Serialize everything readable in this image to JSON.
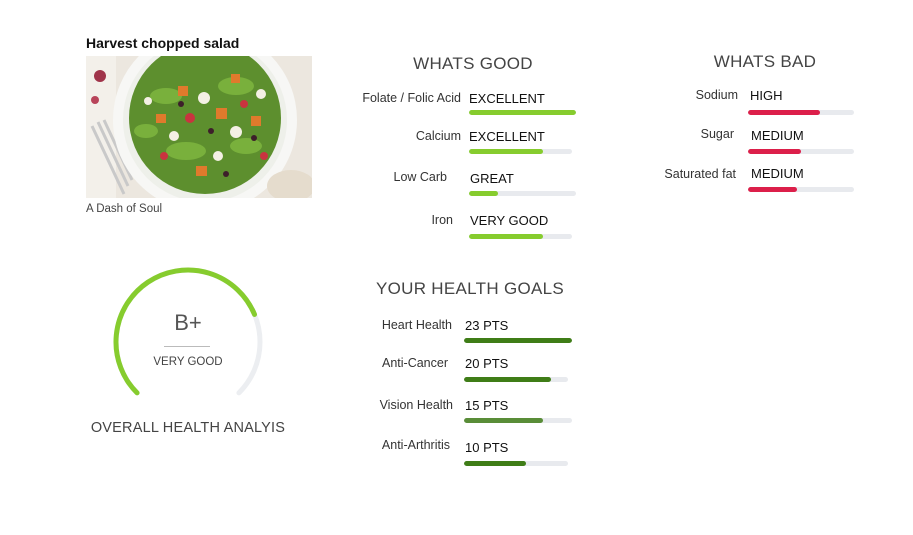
{
  "recipe": {
    "title": "Harvest chopped salad",
    "source": "A Dash of Soul"
  },
  "overall": {
    "grade": "B+",
    "rating": "VERY GOOD",
    "caption": "OVERALL HEALTH ANALYIS",
    "score_fraction": 0.75
  },
  "good": {
    "title": "WHATS GOOD",
    "items": [
      {
        "label": "Folate / Folic Acid",
        "value": "EXCELLENT",
        "level": 1.0
      },
      {
        "label": "Calcium",
        "value": "EXCELLENT",
        "level": 0.72
      },
      {
        "label": "Low Carb",
        "value": "GREAT",
        "level": 0.27
      },
      {
        "label": "Iron",
        "value": "VERY GOOD",
        "level": 0.72
      }
    ]
  },
  "bad": {
    "title": "WHATS BAD",
    "items": [
      {
        "label": "Sodium",
        "value": "HIGH",
        "level": 0.68
      },
      {
        "label": "Sugar",
        "value": "MEDIUM",
        "level": 0.5
      },
      {
        "label": "Saturated fat",
        "value": "MEDIUM",
        "level": 0.46
      }
    ]
  },
  "goals": {
    "title": "YOUR HEALTH GOALS",
    "items": [
      {
        "label": "Heart Health",
        "value": "23 PTS",
        "level": 1.0
      },
      {
        "label": "Anti-Cancer",
        "value": "20 PTS",
        "level": 0.84
      },
      {
        "label": "Vision Health",
        "value": "15 PTS",
        "level": 0.73
      },
      {
        "label": "Anti-Arthritis",
        "value": "10 PTS",
        "level": 0.6
      }
    ]
  },
  "colors": {
    "good": "#86cc2e",
    "bad": "#dc1f4a",
    "goal": "#3f7d17",
    "track": "#e8eaee"
  }
}
